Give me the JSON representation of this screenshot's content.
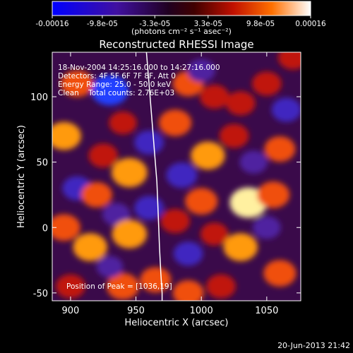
{
  "chart_data": {
    "type": "heatmap",
    "title": "Reconstructed RHESSI Image",
    "xlabel": "Heliocentric X (arcsec)",
    "ylabel": "Heliocentric Y (arcsec)",
    "xlim": [
      886,
      1076
    ],
    "ylim": [
      -56,
      134
    ],
    "x_ticks": [
      900,
      950,
      1000,
      1050
    ],
    "y_ticks": [
      -50,
      0,
      50,
      100
    ],
    "colorbar": {
      "range": [
        -0.00016,
        0.00016
      ],
      "tick_labels": [
        "-0.00016",
        "-9.8e-05",
        "-3.3e-05",
        "3.3e-05",
        "9.8e-05",
        "0.00016"
      ],
      "tick_values": [
        -0.00016,
        -9.8e-05,
        -3.3e-05,
        3.3e-05,
        9.8e-05,
        0.00016
      ],
      "unit_label": "(photons cm⁻² s⁻¹ asec⁻²)"
    },
    "annotations": [
      "18-Nov-2004 14:25:16.000 to 14:27:16.000",
      "Detectors: 4F 5F 6F 7F 8F, Att 0",
      "Energy Range: 25.0 - 50.0 keV",
      "Clean    Total counts: 2.76E+03"
    ],
    "peak_label": "Position of Peak = [1036,19]",
    "peak": [
      1036,
      19
    ],
    "limb_x": [
      958,
      960,
      962,
      964,
      966,
      967,
      968,
      969,
      970,
      970
    ],
    "limb_y": [
      134,
      110,
      85,
      60,
      35,
      10,
      -15,
      -35,
      -50,
      -56
    ],
    "blobs": [
      {
        "x": 930,
        "y": 105,
        "v": -1.0
      },
      {
        "x": 905,
        "y": 110,
        "v": 0.7
      },
      {
        "x": 895,
        "y": 70,
        "v": 0.8
      },
      {
        "x": 925,
        "y": 55,
        "v": 0.5
      },
      {
        "x": 945,
        "y": 42,
        "v": 0.9
      },
      {
        "x": 905,
        "y": 30,
        "v": -0.5
      },
      {
        "x": 920,
        "y": 25,
        "v": 0.6
      },
      {
        "x": 935,
        "y": 10,
        "v": -0.4
      },
      {
        "x": 895,
        "y": 0,
        "v": 0.7
      },
      {
        "x": 915,
        "y": -15,
        "v": 0.8
      },
      {
        "x": 945,
        "y": -5,
        "v": 0.85
      },
      {
        "x": 960,
        "y": 15,
        "v": -0.5
      },
      {
        "x": 900,
        "y": -45,
        "v": 0.5
      },
      {
        "x": 940,
        "y": -45,
        "v": 0.7
      },
      {
        "x": 930,
        "y": -30,
        "v": -0.3
      },
      {
        "x": 965,
        "y": -40,
        "v": 0.6
      },
      {
        "x": 980,
        "y": 80,
        "v": 0.7
      },
      {
        "x": 990,
        "y": 110,
        "v": 0.6
      },
      {
        "x": 1000,
        "y": 120,
        "v": -0.4
      },
      {
        "x": 1010,
        "y": 100,
        "v": 0.5
      },
      {
        "x": 1030,
        "y": 95,
        "v": 0.5
      },
      {
        "x": 1050,
        "y": 110,
        "v": 0.5
      },
      {
        "x": 985,
        "y": 40,
        "v": -0.6
      },
      {
        "x": 1005,
        "y": 55,
        "v": 0.8
      },
      {
        "x": 1000,
        "y": 20,
        "v": 0.7
      },
      {
        "x": 980,
        "y": 5,
        "v": 0.5
      },
      {
        "x": 990,
        "y": -20,
        "v": -0.5
      },
      {
        "x": 1010,
        "y": -5,
        "v": 0.4
      },
      {
        "x": 1036,
        "y": 19,
        "v": 1.0
      },
      {
        "x": 1055,
        "y": 25,
        "v": 0.7
      },
      {
        "x": 1060,
        "y": 60,
        "v": 0.6
      },
      {
        "x": 1040,
        "y": 50,
        "v": -0.4
      },
      {
        "x": 1025,
        "y": 70,
        "v": 0.5
      },
      {
        "x": 1065,
        "y": 90,
        "v": -0.5
      },
      {
        "x": 1030,
        "y": -15,
        "v": 0.8
      },
      {
        "x": 1060,
        "y": -35,
        "v": 0.7
      },
      {
        "x": 1015,
        "y": -45,
        "v": 0.5
      },
      {
        "x": 990,
        "y": -50,
        "v": 0.6
      },
      {
        "x": 1050,
        "y": 0,
        "v": -0.4
      },
      {
        "x": 960,
        "y": 65,
        "v": -0.5
      },
      {
        "x": 940,
        "y": 80,
        "v": 0.4
      },
      {
        "x": 1070,
        "y": 130,
        "v": 0.5
      }
    ]
  },
  "footer": {
    "timestamp": "20-Jun-2013 21:42"
  }
}
